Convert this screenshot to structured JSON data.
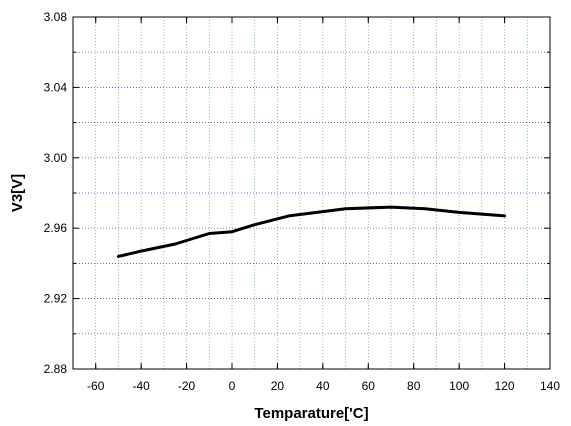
{
  "chart_data": {
    "type": "line",
    "title": "",
    "xlabel": "Temparature['C]",
    "ylabel": "V3[V]",
    "xlim": [
      -70,
      140
    ],
    "ylim": [
      2.88,
      3.08
    ],
    "xticks": [
      -60,
      -40,
      -20,
      0,
      20,
      40,
      60,
      80,
      100,
      120,
      140
    ],
    "yticks": [
      2.88,
      2.92,
      2.96,
      3.0,
      3.04,
      3.08
    ],
    "xtick_labels": [
      "-60",
      "-40",
      "-20",
      "0",
      "20",
      "40",
      "60",
      "80",
      "100",
      "120",
      "140"
    ],
    "ytick_labels": [
      "2.88",
      "2.92",
      "2.96",
      "3.00",
      "3.04",
      "3.08"
    ],
    "grid": true,
    "grid_colors": {
      "vertical": "#33cc33",
      "horizontal": "#3333cc"
    },
    "series": [
      {
        "color": "#000000",
        "x": [
          -50,
          -40,
          -25,
          -10,
          0,
          10,
          25,
          50,
          70,
          85,
          100,
          120
        ],
        "y": [
          2.944,
          2.947,
          2.951,
          2.957,
          2.958,
          2.962,
          2.967,
          2.971,
          2.972,
          2.971,
          2.969,
          2.967
        ]
      }
    ]
  }
}
